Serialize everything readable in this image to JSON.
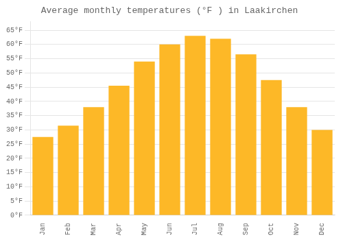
{
  "chart_data": {
    "type": "bar",
    "title": "Average monthly temperatures (°F ) in Laakirchen",
    "categories": [
      "Jan",
      "Feb",
      "Mar",
      "Apr",
      "May",
      "Jun",
      "Jul",
      "Aug",
      "Sep",
      "Oct",
      "Nov",
      "Dec"
    ],
    "values": [
      27.5,
      31.5,
      38.0,
      45.5,
      54.0,
      60.0,
      63.0,
      62.0,
      56.5,
      47.5,
      38.0,
      30.0
    ],
    "color": "#FDB827",
    "ylim": [
      0,
      68
    ],
    "yticks": [
      {
        "value": 0,
        "label": "0°F"
      },
      {
        "value": 5,
        "label": "5°F"
      },
      {
        "value": 10,
        "label": "10°F"
      },
      {
        "value": 15,
        "label": "15°F"
      },
      {
        "value": 20,
        "label": "20°F"
      },
      {
        "value": 25,
        "label": "25°F"
      },
      {
        "value": 30,
        "label": "30°F"
      },
      {
        "value": 35,
        "label": "35°F"
      },
      {
        "value": 40,
        "label": "40°F"
      },
      {
        "value": 45,
        "label": "45°F"
      },
      {
        "value": 50,
        "label": "50°F"
      },
      {
        "value": 55,
        "label": "55°F"
      },
      {
        "value": 60,
        "label": "60°F"
      },
      {
        "value": 65,
        "label": "65°F"
      }
    ],
    "grid": true
  }
}
